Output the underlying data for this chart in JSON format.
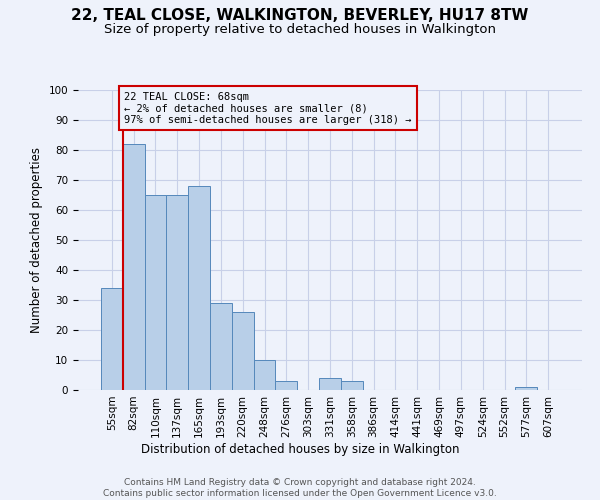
{
  "title": "22, TEAL CLOSE, WALKINGTON, BEVERLEY, HU17 8TW",
  "subtitle": "Size of property relative to detached houses in Walkington",
  "xlabel": "Distribution of detached houses by size in Walkington",
  "ylabel": "Number of detached properties",
  "annotation_line1": "22 TEAL CLOSE: 68sqm",
  "annotation_line2": "← 2% of detached houses are smaller (8)",
  "annotation_line3": "97% of semi-detached houses are larger (318) →",
  "bar_labels": [
    "55sqm",
    "82sqm",
    "110sqm",
    "137sqm",
    "165sqm",
    "193sqm",
    "220sqm",
    "248sqm",
    "276sqm",
    "303sqm",
    "331sqm",
    "358sqm",
    "386sqm",
    "414sqm",
    "441sqm",
    "469sqm",
    "497sqm",
    "524sqm",
    "552sqm",
    "577sqm",
    "607sqm"
  ],
  "bar_values": [
    34,
    82,
    65,
    65,
    68,
    29,
    26,
    10,
    3,
    0,
    4,
    3,
    0,
    0,
    0,
    0,
    0,
    0,
    0,
    1,
    0
  ],
  "bar_color": "#b8cfe8",
  "bar_edge_color": "#5588bb",
  "highlight_color": "#cc0000",
  "annotation_box_color": "#cc0000",
  "background_color": "#eef2fb",
  "grid_color": "#c8d0e8",
  "ylim": [
    0,
    100
  ],
  "yticks": [
    0,
    10,
    20,
    30,
    40,
    50,
    60,
    70,
    80,
    90,
    100
  ],
  "footer_line1": "Contains HM Land Registry data © Crown copyright and database right 2024.",
  "footer_line2": "Contains public sector information licensed under the Open Government Licence v3.0.",
  "title_fontsize": 11,
  "subtitle_fontsize": 9.5,
  "xlabel_fontsize": 8.5,
  "ylabel_fontsize": 8.5,
  "tick_fontsize": 7.5,
  "footer_fontsize": 6.5,
  "annotation_fontsize": 7.5,
  "vline_x": 0.5
}
